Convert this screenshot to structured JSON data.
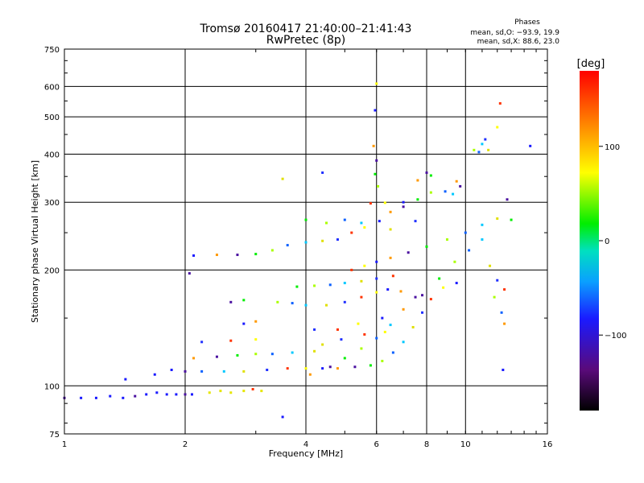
{
  "chart_data": {
    "type": "scatter",
    "title": "Tromsø 20160417 21:40:00–21:41:43",
    "subtitle": "RwPretec (8p)",
    "xlabel": "Frequency [MHz]",
    "ylabel": "Stationary phase Virtual Height [km]",
    "x_scale": "log",
    "y_scale": "log",
    "xlim": [
      1,
      16
    ],
    "ylim": [
      75,
      750
    ],
    "x_ticks": [
      1,
      2,
      4,
      6,
      8,
      10,
      16
    ],
    "x_tick_labels": [
      "1",
      "2",
      "4",
      "6",
      "8",
      "10",
      "16"
    ],
    "y_ticks": [
      75,
      100,
      200,
      300,
      400,
      500,
      600,
      750
    ],
    "y_tick_labels": [
      "75",
      "100",
      "200",
      "300",
      "400",
      "500",
      "600",
      "750"
    ],
    "grid": true,
    "phase_stats": {
      "heading": "Phases",
      "line_o": "mean, sd,O: −93.9, 19.9",
      "line_x": "mean, sd,X:  88.6, 23.0"
    },
    "colorbar": {
      "label": "[deg]",
      "range": [
        -180,
        180
      ],
      "ticks": [
        100,
        0,
        -100
      ],
      "tick_labels": [
        "100",
        "0",
        "−100"
      ],
      "colormap": "rainbow"
    },
    "series": [
      {
        "points": [
          [
            1.0,
            93
          ],
          [
            1.1,
            93
          ],
          [
            1.2,
            93
          ],
          [
            1.3,
            94
          ],
          [
            1.4,
            93
          ],
          [
            1.5,
            94
          ],
          [
            1.6,
            95
          ],
          [
            1.7,
            96
          ],
          [
            1.8,
            95
          ],
          [
            1.9,
            95
          ],
          [
            2.0,
            95
          ],
          [
            2.08,
            95
          ],
          [
            1.42,
            104
          ],
          [
            1.68,
            107
          ],
          [
            1.85,
            110
          ],
          [
            2.0,
            109
          ],
          [
            2.2,
            109
          ],
          [
            2.5,
            109
          ],
          [
            2.8,
            109
          ],
          [
            3.2,
            110
          ],
          [
            3.6,
            111
          ],
          [
            4.0,
            111
          ],
          [
            4.4,
            111
          ],
          [
            4.8,
            111
          ],
          [
            5.3,
            112
          ],
          [
            5.8,
            113
          ],
          [
            6.2,
            116
          ],
          [
            6.6,
            122
          ],
          [
            7.0,
            130
          ],
          [
            7.4,
            142
          ],
          [
            7.8,
            155
          ],
          [
            8.2,
            168
          ],
          [
            8.8,
            180
          ],
          [
            9.5,
            185
          ],
          [
            2.1,
            118
          ],
          [
            2.4,
            119
          ],
          [
            2.7,
            120
          ],
          [
            3.0,
            121
          ],
          [
            3.3,
            121
          ],
          [
            3.7,
            122
          ],
          [
            4.2,
            123
          ],
          [
            2.2,
            130
          ],
          [
            2.6,
            131
          ],
          [
            3.0,
            132
          ],
          [
            2.8,
            145
          ],
          [
            3.0,
            147
          ],
          [
            2.6,
            165
          ],
          [
            2.8,
            167
          ],
          [
            3.4,
            165
          ],
          [
            3.7,
            164
          ],
          [
            4.0,
            162
          ],
          [
            4.5,
            162
          ],
          [
            5.0,
            165
          ],
          [
            5.5,
            170
          ],
          [
            6.0,
            175
          ],
          [
            6.4,
            178
          ],
          [
            6.9,
            176
          ],
          [
            7.5,
            170
          ],
          [
            3.8,
            181
          ],
          [
            4.2,
            182
          ],
          [
            4.6,
            183
          ],
          [
            5.0,
            185
          ],
          [
            5.5,
            187
          ],
          [
            6.0,
            190
          ],
          [
            6.6,
            193
          ],
          [
            2.05,
            196
          ],
          [
            2.1,
            218
          ],
          [
            2.4,
            219
          ],
          [
            2.7,
            219
          ],
          [
            3.0,
            220
          ],
          [
            3.3,
            225
          ],
          [
            3.6,
            232
          ],
          [
            4.0,
            236
          ],
          [
            4.4,
            238
          ],
          [
            4.8,
            240
          ],
          [
            5.2,
            250
          ],
          [
            5.6,
            258
          ],
          [
            6.1,
            268
          ],
          [
            6.5,
            283
          ],
          [
            7.0,
            292
          ],
          [
            7.6,
            305
          ],
          [
            8.2,
            318
          ],
          [
            8.9,
            320
          ],
          [
            9.3,
            315
          ],
          [
            3.5,
            345
          ],
          [
            4.4,
            358
          ],
          [
            5.8,
            298
          ],
          [
            6.3,
            299
          ],
          [
            7.0,
            300
          ],
          [
            7.6,
            342
          ],
          [
            8.0,
            358
          ],
          [
            8.2,
            352
          ],
          [
            10.5,
            410
          ],
          [
            10.8,
            405
          ],
          [
            11.0,
            425
          ],
          [
            11.4,
            410
          ],
          [
            11.2,
            437
          ],
          [
            12.2,
            542
          ],
          [
            12.0,
            470
          ],
          [
            14.5,
            420
          ],
          [
            9.5,
            340
          ],
          [
            9.7,
            330
          ],
          [
            4.0,
            270
          ],
          [
            4.5,
            265
          ],
          [
            5.0,
            270
          ],
          [
            5.5,
            265
          ],
          [
            6.5,
            255
          ],
          [
            7.5,
            268
          ],
          [
            5.2,
            200
          ],
          [
            5.6,
            205
          ],
          [
            6.0,
            210
          ],
          [
            6.5,
            215
          ],
          [
            7.2,
            222
          ],
          [
            8.0,
            230
          ],
          [
            9.0,
            240
          ],
          [
            10.0,
            250
          ],
          [
            11.0,
            262
          ],
          [
            12.0,
            272
          ],
          [
            4.2,
            140
          ],
          [
            4.8,
            140
          ],
          [
            5.4,
            145
          ],
          [
            6.2,
            150
          ],
          [
            7.0,
            158
          ],
          [
            7.8,
            172
          ],
          [
            8.6,
            190
          ],
          [
            9.4,
            210
          ],
          [
            10.2,
            225
          ],
          [
            11.0,
            240
          ],
          [
            11.5,
            205
          ],
          [
            12.0,
            188
          ],
          [
            12.5,
            178
          ],
          [
            6.0,
            610
          ],
          [
            5.95,
            520
          ],
          [
            5.9,
            420
          ],
          [
            6.0,
            385
          ],
          [
            5.95,
            355
          ],
          [
            6.05,
            330
          ],
          [
            2.3,
            96
          ],
          [
            2.45,
            97
          ],
          [
            2.6,
            96
          ],
          [
            2.8,
            97
          ],
          [
            2.95,
            98
          ],
          [
            3.1,
            97
          ],
          [
            3.5,
            83
          ],
          [
            4.1,
            107
          ],
          [
            4.6,
            112
          ],
          [
            5.0,
            118
          ],
          [
            5.5,
            125
          ],
          [
            6.0,
            133
          ],
          [
            6.5,
            144
          ],
          [
            4.4,
            128
          ],
          [
            4.9,
            132
          ],
          [
            5.6,
            136
          ],
          [
            6.3,
            138
          ],
          [
            12.4,
            110
          ],
          [
            12.5,
            145
          ],
          [
            12.7,
            305
          ],
          [
            13.0,
            270
          ],
          [
            11.8,
            170
          ],
          [
            12.3,
            155
          ]
        ]
      }
    ]
  }
}
